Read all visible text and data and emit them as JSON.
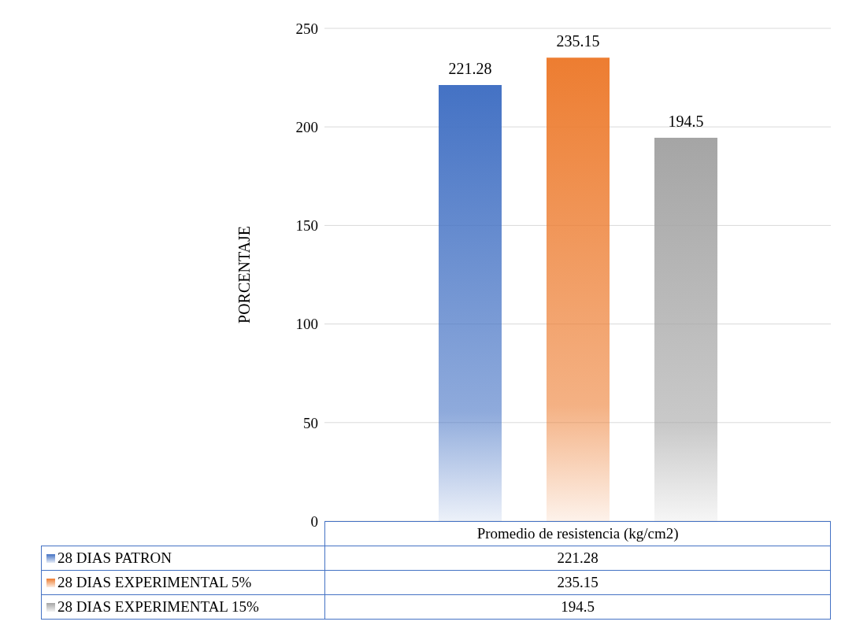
{
  "chart_data": {
    "type": "bar",
    "ylabel": "PORCENTAJE",
    "categories": [
      "Promedio de resistencia (kg/cm2)"
    ],
    "series": [
      {
        "name": "28 DIAS PATRON",
        "color": "#4472c4",
        "values": [
          221.28
        ],
        "value_labels": [
          "221.28"
        ]
      },
      {
        "name": "28 DIAS EXPERIMENTAL 5%",
        "color": "#ed7d31",
        "values": [
          235.15
        ],
        "value_labels": [
          "235.15"
        ]
      },
      {
        "name": "28 DIAS EXPERIMENTAL 15%",
        "color": "#a5a5a5",
        "values": [
          194.5
        ],
        "value_labels": [
          "194.5"
        ]
      }
    ],
    "ylim": [
      0,
      250
    ],
    "yticks": [
      0,
      50,
      100,
      150,
      200,
      250
    ],
    "grid": "y",
    "legend": "bottom"
  }
}
